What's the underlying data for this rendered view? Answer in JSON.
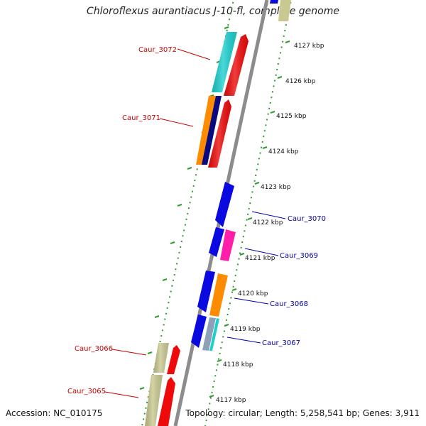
{
  "title": "Chloroflexus aurantiacus J-10-fl, complete genome",
  "footer": {
    "accession": "Accession: NC_010175",
    "topology": "Topology: circular; Length: 5,258,541 bp; Genes: 3,911"
  },
  "colors": {
    "backbone": "#8c8c8c",
    "tick": "#2e9b2e",
    "label_forward": "#cc0000",
    "label_reverse": "#0000aa"
  },
  "kbp_ticks": [
    "4127 kbp",
    "4126 kbp",
    "4125 kbp",
    "4124 kbp",
    "4123 kbp",
    "4122 kbp",
    "4121 kbp",
    "4120 kbp",
    "4119 kbp",
    "4118 kbp",
    "4117 kbp"
  ],
  "gene_labels": [
    "Caur_3072",
    "Caur_3071",
    "Caur_3070",
    "Caur_3069",
    "Caur_3068",
    "Caur_3067",
    "Caur_3066",
    "Caur_3065"
  ]
}
